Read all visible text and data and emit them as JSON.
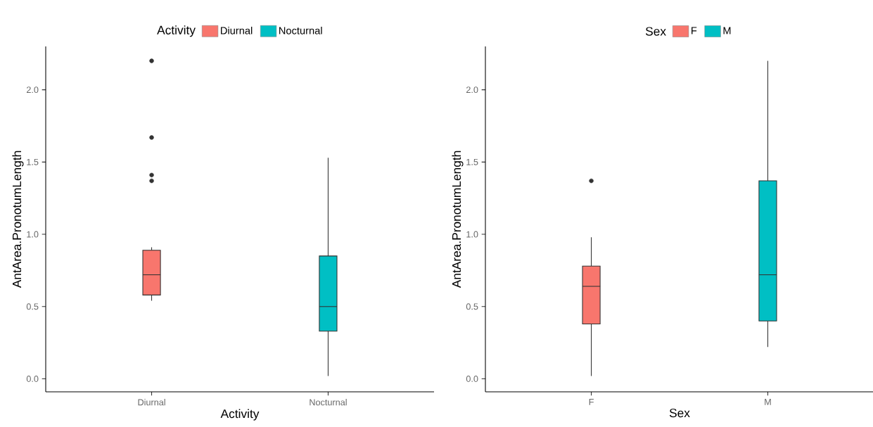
{
  "chart_data": [
    {
      "type": "box",
      "xlabel": "Activity",
      "ylabel": "AntArea.PronotumLength",
      "legend_title": "Activity",
      "legend": "top",
      "categories": [
        "Diurnal",
        "Nocturnal"
      ],
      "ylim": [
        -0.09,
        2.3
      ],
      "yticks": [
        {
          "value": 0,
          "label": "0.0"
        },
        {
          "value": 0.5,
          "label": "0.5"
        },
        {
          "value": 1,
          "label": "1.0"
        },
        {
          "value": 1.5,
          "label": "1.5"
        },
        {
          "value": 2,
          "label": "2.0"
        }
      ],
      "series": [
        {
          "name": "Diurnal",
          "color": "#f8766d",
          "boxes": [
            {
              "low": 0.54,
              "q1": 0.58,
              "median": 0.72,
              "q3": 0.89,
              "high": 0.91,
              "outliers": [
                2.2,
                1.67,
                1.41,
                1.37
              ]
            },
            null
          ]
        },
        {
          "name": "Nocturnal",
          "color": "#00bfc4",
          "boxes": [
            null,
            {
              "low": 0.02,
              "q1": 0.33,
              "median": 0.5,
              "q3": 0.85,
              "high": 1.53
            }
          ]
        }
      ]
    },
    {
      "type": "box",
      "xlabel": "Sex",
      "ylabel": "AntArea.PronotumLength",
      "legend_title": "Sex",
      "legend": "top",
      "categories": [
        "F",
        "M"
      ],
      "ylim": [
        -0.09,
        2.3
      ],
      "yticks": [
        {
          "value": 0,
          "label": "0.0"
        },
        {
          "value": 0.5,
          "label": "0.5"
        },
        {
          "value": 1,
          "label": "1.0"
        },
        {
          "value": 1.5,
          "label": "1.5"
        },
        {
          "value": 2,
          "label": "2.0"
        }
      ],
      "series": [
        {
          "name": "F",
          "color": "#f8766d",
          "boxes": [
            {
              "low": 0.02,
              "q1": 0.38,
              "median": 0.64,
              "q3": 0.78,
              "high": 0.98,
              "outliers": [
                1.37
              ]
            },
            null
          ]
        },
        {
          "name": "M",
          "color": "#00bfc4",
          "boxes": [
            null,
            {
              "low": 0.22,
              "q1": 0.4,
              "median": 0.72,
              "q3": 1.37,
              "high": 2.2
            }
          ]
        }
      ]
    }
  ]
}
